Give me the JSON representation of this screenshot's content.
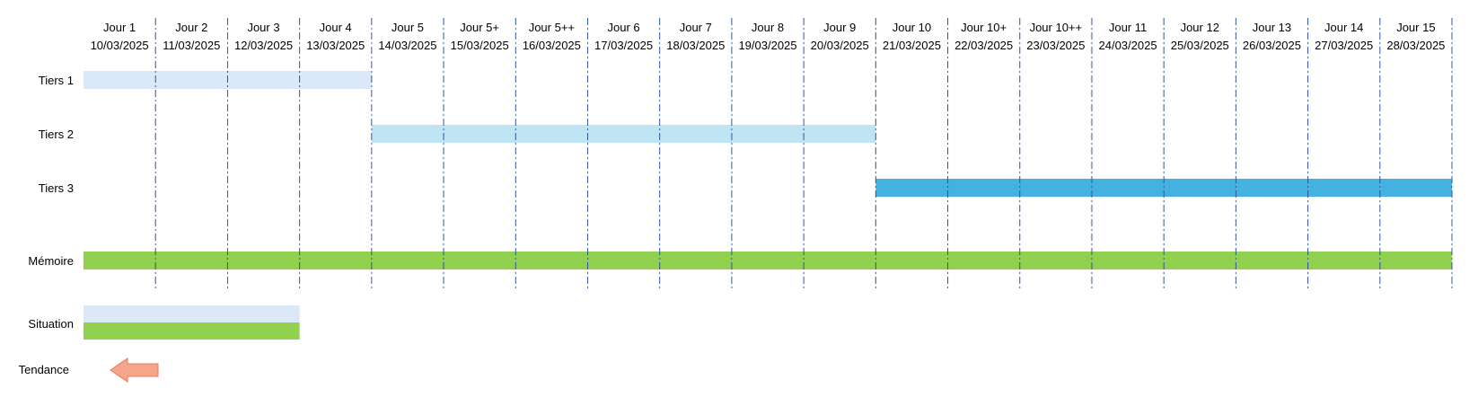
{
  "chart_data": {
    "type": "gantt",
    "columns": [
      {
        "day": "Jour 1",
        "date": "10/03/2025"
      },
      {
        "day": "Jour 2",
        "date": "11/03/2025"
      },
      {
        "day": "Jour 3",
        "date": "12/03/2025"
      },
      {
        "day": "Jour 4",
        "date": "13/03/2025"
      },
      {
        "day": "Jour 5",
        "date": "14/03/2025"
      },
      {
        "day": "Jour 5+",
        "date": "15/03/2025"
      },
      {
        "day": "Jour 5++",
        "date": "16/03/2025"
      },
      {
        "day": "Jour 6",
        "date": "17/03/2025"
      },
      {
        "day": "Jour 7",
        "date": "18/03/2025"
      },
      {
        "day": "Jour 8",
        "date": "19/03/2025"
      },
      {
        "day": "Jour 9",
        "date": "20/03/2025"
      },
      {
        "day": "Jour 10",
        "date": "21/03/2025"
      },
      {
        "day": "Jour 10+",
        "date": "22/03/2025"
      },
      {
        "day": "Jour 10++",
        "date": "23/03/2025"
      },
      {
        "day": "Jour 11",
        "date": "24/03/2025"
      },
      {
        "day": "Jour 12",
        "date": "25/03/2025"
      },
      {
        "day": "Jour 13",
        "date": "26/03/2025"
      },
      {
        "day": "Jour 14",
        "date": "27/03/2025"
      },
      {
        "day": "Jour 15",
        "date": "28/03/2025"
      }
    ],
    "rows": [
      {
        "label": "Tiers 1",
        "bars": [
          {
            "start": "10/03/2025",
            "end": "13/03/2025",
            "color": "#dbe8f7"
          }
        ]
      },
      {
        "label": "Tiers 2",
        "bars": [
          {
            "start": "14/03/2025",
            "end": "20/03/2025",
            "color": "#bfe4f4"
          }
        ]
      },
      {
        "label": "Tiers 3",
        "bars": [
          {
            "start": "21/03/2025",
            "end": "28/03/2025",
            "color": "#45b1e1"
          }
        ]
      },
      {
        "label": "Mémoire",
        "bars": [
          {
            "start": "10/03/2025",
            "end": "28/03/2025",
            "color": "#92d050"
          }
        ]
      }
    ],
    "situation": {
      "label": "Situation",
      "bars": [
        {
          "start": "10/03/2025",
          "end": "12/03/2025",
          "color": "#dbe8f7"
        },
        {
          "start": "10/03/2025",
          "end": "12/03/2025",
          "color": "#92d050"
        }
      ]
    },
    "tendance": {
      "label": "Tendance",
      "direction": "left",
      "color": "#f4a58a",
      "border_color": "#e97c5a"
    },
    "gridline_color": "#2f5597",
    "gridline_style": "dash-dot"
  }
}
